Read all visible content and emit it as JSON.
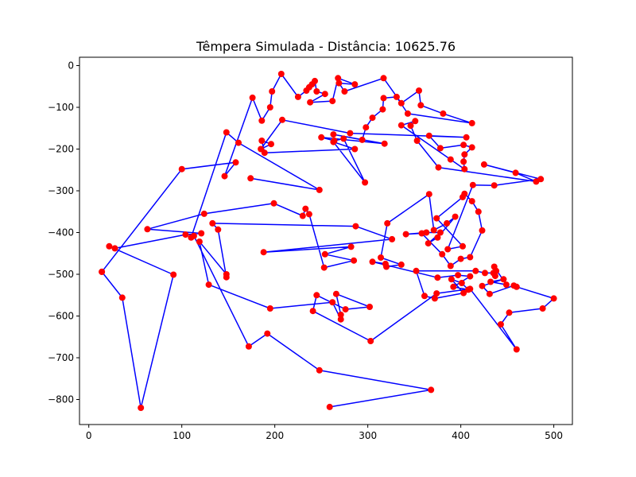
{
  "chart_data": {
    "type": "line",
    "title": "Têmpera Simulada - Distância: 10625.76",
    "xlabel": "",
    "ylabel": "",
    "xlim": [
      -10,
      520
    ],
    "ylim": [
      -860,
      20
    ],
    "xticks": [
      0,
      100,
      200,
      300,
      400,
      500
    ],
    "yticks": [
      0,
      -100,
      -200,
      -300,
      -400,
      -500,
      -600,
      -700,
      -800
    ],
    "grid": false,
    "legend": "none",
    "colors": {
      "line": "#0000ff",
      "marker": "#ff0000"
    },
    "series": [
      {
        "points": [
          [
            14,
            -494
          ],
          [
            100,
            -248
          ],
          [
            158,
            -232
          ],
          [
            146,
            -265
          ],
          [
            176,
            -77
          ],
          [
            186,
            -132
          ],
          [
            195,
            -100
          ],
          [
            197,
            -62
          ],
          [
            207,
            -20
          ],
          [
            225,
            -75
          ],
          [
            234,
            -60
          ],
          [
            237,
            -52
          ],
          [
            240,
            -45
          ],
          [
            243,
            -37
          ],
          [
            245,
            -62
          ],
          [
            254,
            -68
          ],
          [
            238,
            -88
          ],
          [
            262,
            -85
          ],
          [
            268,
            -30
          ],
          [
            286,
            -45
          ],
          [
            269,
            -42
          ],
          [
            275,
            -62
          ],
          [
            317,
            -30
          ],
          [
            336,
            -90
          ],
          [
            355,
            -60
          ],
          [
            357,
            -95
          ],
          [
            381,
            -115
          ],
          [
            412,
            -138
          ],
          [
            343,
            -115
          ],
          [
            331,
            -75
          ],
          [
            317,
            -78
          ],
          [
            316,
            -105
          ],
          [
            305,
            -125
          ],
          [
            298,
            -148
          ],
          [
            294,
            -178
          ],
          [
            263,
            -165
          ],
          [
            318,
            -187
          ],
          [
            250,
            -172
          ],
          [
            264,
            -180
          ],
          [
            274,
            -175
          ],
          [
            297,
            -280
          ],
          [
            263,
            -183
          ],
          [
            286,
            -200
          ],
          [
            189,
            -209
          ],
          [
            186,
            -180
          ],
          [
            196,
            -188
          ],
          [
            185,
            -200
          ],
          [
            208,
            -130
          ],
          [
            281,
            -162
          ],
          [
            406,
            -172
          ],
          [
            366,
            -168
          ],
          [
            378,
            -198
          ],
          [
            403,
            -190
          ],
          [
            412,
            -196
          ],
          [
            404,
            -213
          ],
          [
            403,
            -230
          ],
          [
            404,
            -248
          ],
          [
            389,
            -225
          ],
          [
            336,
            -143
          ],
          [
            351,
            -133
          ],
          [
            346,
            -144
          ],
          [
            353,
            -180
          ],
          [
            376,
            -244
          ],
          [
            481,
            -278
          ],
          [
            459,
            -257
          ],
          [
            425,
            -237
          ],
          [
            486,
            -272
          ],
          [
            436,
            -287
          ],
          [
            413,
            -286
          ],
          [
            386,
            -440
          ],
          [
            402,
            -433
          ],
          [
            374,
            -366
          ],
          [
            402,
            -315
          ],
          [
            404,
            -307
          ],
          [
            412,
            -325
          ],
          [
            419,
            -350
          ],
          [
            423,
            -395
          ],
          [
            410,
            -459
          ],
          [
            400,
            -463
          ],
          [
            389,
            -480
          ],
          [
            380,
            -452
          ],
          [
            358,
            -402
          ],
          [
            341,
            -404
          ],
          [
            363,
            -400
          ],
          [
            378,
            -400
          ],
          [
            365,
            -426
          ],
          [
            375,
            -412
          ],
          [
            394,
            -362
          ],
          [
            385,
            -378
          ],
          [
            371,
            -394
          ],
          [
            366,
            -308
          ],
          [
            321,
            -378
          ],
          [
            314,
            -460
          ],
          [
            336,
            -477
          ],
          [
            320,
            -482
          ],
          [
            319,
            -475
          ],
          [
            305,
            -470
          ],
          [
            375,
            -508
          ],
          [
            397,
            -502
          ],
          [
            410,
            -505
          ],
          [
            392,
            -530
          ],
          [
            408,
            -537
          ],
          [
            401,
            -521
          ],
          [
            390,
            -512
          ],
          [
            403,
            -545
          ],
          [
            372,
            -558
          ],
          [
            361,
            -552
          ],
          [
            352,
            -492
          ],
          [
            416,
            -492
          ],
          [
            426,
            -497
          ],
          [
            435,
            -497
          ],
          [
            437,
            -504
          ],
          [
            438,
            -492
          ],
          [
            436,
            -482
          ],
          [
            449,
            -525
          ],
          [
            432,
            -518
          ],
          [
            446,
            -512
          ],
          [
            423,
            -528
          ],
          [
            431,
            -547
          ],
          [
            457,
            -527
          ],
          [
            460,
            -530
          ],
          [
            500,
            -558
          ],
          [
            488,
            -582
          ],
          [
            452,
            -592
          ],
          [
            443,
            -620
          ],
          [
            460,
            -680
          ],
          [
            410,
            -535
          ],
          [
            374,
            -546
          ],
          [
            303,
            -660
          ],
          [
            241,
            -588
          ],
          [
            245,
            -550
          ],
          [
            276,
            -584
          ],
          [
            302,
            -578
          ],
          [
            266,
            -547
          ],
          [
            271,
            -597
          ],
          [
            271,
            -608
          ],
          [
            262,
            -567
          ],
          [
            195,
            -582
          ],
          [
            129,
            -525
          ],
          [
            119,
            -422
          ],
          [
            148,
            -500
          ],
          [
            148,
            -507
          ],
          [
            139,
            -393
          ],
          [
            133,
            -378
          ],
          [
            287,
            -385
          ],
          [
            326,
            -416
          ],
          [
            188,
            -447
          ],
          [
            282,
            -434
          ],
          [
            254,
            -452
          ],
          [
            285,
            -467
          ],
          [
            253,
            -484
          ],
          [
            237,
            -356
          ],
          [
            233,
            -343
          ],
          [
            230,
            -360
          ],
          [
            199,
            -330
          ],
          [
            124,
            -355
          ],
          [
            63,
            -392
          ],
          [
            121,
            -402
          ],
          [
            104,
            -405
          ],
          [
            28,
            -438
          ],
          [
            22,
            -433
          ],
          [
            91,
            -501
          ],
          [
            56,
            -820
          ],
          [
            36,
            -556
          ],
          [
            14,
            -494
          ]
        ]
      },
      {
        "points": [
          [
            174,
            -270
          ],
          [
            248,
            -298
          ],
          [
            161,
            -185
          ],
          [
            148,
            -160
          ],
          [
            110,
            -412
          ],
          [
            113,
            -408
          ],
          [
            172,
            -673
          ],
          [
            192,
            -642
          ],
          [
            248,
            -730
          ],
          [
            368,
            -777
          ],
          [
            259,
            -818
          ]
        ]
      }
    ]
  }
}
